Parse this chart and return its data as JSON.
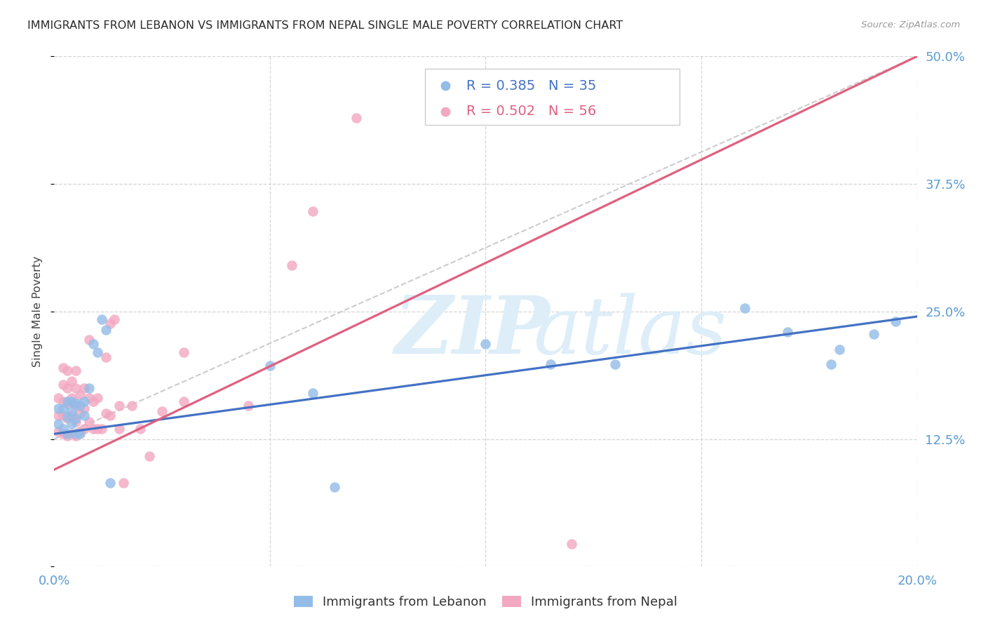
{
  "title": "IMMIGRANTS FROM LEBANON VS IMMIGRANTS FROM NEPAL SINGLE MALE POVERTY CORRELATION CHART",
  "source": "Source: ZipAtlas.com",
  "ylabel": "Single Male Poverty",
  "xlim": [
    0.0,
    0.2
  ],
  "ylim": [
    0.0,
    0.5
  ],
  "xticks": [
    0.0,
    0.05,
    0.1,
    0.15,
    0.2
  ],
  "yticks": [
    0.0,
    0.125,
    0.25,
    0.375,
    0.5
  ],
  "xticklabels": [
    "0.0%",
    "",
    "",
    "",
    "20.0%"
  ],
  "yticklabels_right": [
    "",
    "12.5%",
    "25.0%",
    "37.5%",
    "50.0%"
  ],
  "legend_R_leb": "0.385",
  "legend_N_leb": "35",
  "legend_R_nep": "0.502",
  "legend_N_nep": "56",
  "lebanon_label": "Immigrants from Lebanon",
  "nepal_label": "Immigrants from Nepal",
  "lebanon_color": "#93bce8",
  "nepal_color": "#f2a8c0",
  "lebanon_line_color": "#4472c4",
  "nepal_line_color": "#e06080",
  "legend_R_leb_color": "#4472c4",
  "legend_R_nep_color": "#e06080",
  "tick_color": "#5b9bd5",
  "background_color": "#ffffff",
  "grid_color": "#d5d5d5",
  "ref_line_color": "#cccccc",
  "leb_line_x0": 0.0,
  "leb_line_y0": 0.13,
  "leb_line_x1": 0.2,
  "leb_line_y1": 0.245,
  "nep_line_x0": 0.0,
  "nep_line_y0": 0.095,
  "nep_line_x1": 0.2,
  "nep_line_y1": 0.5,
  "ref_line_x0": 0.0,
  "ref_line_y0": 0.125,
  "ref_line_x1": 0.2,
  "ref_line_y1": 0.5,
  "lebanon_x": [
    0.001,
    0.001,
    0.002,
    0.002,
    0.003,
    0.003,
    0.003,
    0.004,
    0.004,
    0.004,
    0.005,
    0.005,
    0.005,
    0.006,
    0.006,
    0.007,
    0.007,
    0.008,
    0.009,
    0.01,
    0.011,
    0.012,
    0.013,
    0.05,
    0.06,
    0.065,
    0.1,
    0.115,
    0.13,
    0.16,
    0.17,
    0.18,
    0.182,
    0.19,
    0.195
  ],
  "lebanon_y": [
    0.14,
    0.155,
    0.135,
    0.155,
    0.13,
    0.147,
    0.162,
    0.14,
    0.152,
    0.162,
    0.13,
    0.145,
    0.16,
    0.13,
    0.158,
    0.148,
    0.162,
    0.175,
    0.218,
    0.21,
    0.242,
    0.232,
    0.082,
    0.197,
    0.17,
    0.078,
    0.218,
    0.198,
    0.198,
    0.253,
    0.23,
    0.198,
    0.213,
    0.228,
    0.24
  ],
  "nepal_x": [
    0.001,
    0.001,
    0.001,
    0.002,
    0.002,
    0.002,
    0.002,
    0.002,
    0.003,
    0.003,
    0.003,
    0.003,
    0.003,
    0.004,
    0.004,
    0.004,
    0.004,
    0.005,
    0.005,
    0.005,
    0.005,
    0.005,
    0.006,
    0.006,
    0.006,
    0.007,
    0.007,
    0.007,
    0.008,
    0.008,
    0.008,
    0.009,
    0.009,
    0.01,
    0.01,
    0.011,
    0.012,
    0.012,
    0.013,
    0.013,
    0.014,
    0.015,
    0.015,
    0.016,
    0.018,
    0.02,
    0.022,
    0.025,
    0.03,
    0.03,
    0.045,
    0.055,
    0.06,
    0.07,
    0.1,
    0.12
  ],
  "nepal_y": [
    0.132,
    0.148,
    0.165,
    0.13,
    0.148,
    0.162,
    0.178,
    0.195,
    0.128,
    0.145,
    0.16,
    0.175,
    0.192,
    0.13,
    0.148,
    0.165,
    0.182,
    0.128,
    0.142,
    0.158,
    0.175,
    0.192,
    0.132,
    0.15,
    0.168,
    0.135,
    0.155,
    0.175,
    0.142,
    0.165,
    0.222,
    0.135,
    0.162,
    0.135,
    0.165,
    0.135,
    0.15,
    0.205,
    0.238,
    0.148,
    0.242,
    0.135,
    0.158,
    0.082,
    0.158,
    0.135,
    0.108,
    0.152,
    0.162,
    0.21,
    0.158,
    0.295,
    0.348,
    0.44,
    0.458,
    0.022
  ]
}
